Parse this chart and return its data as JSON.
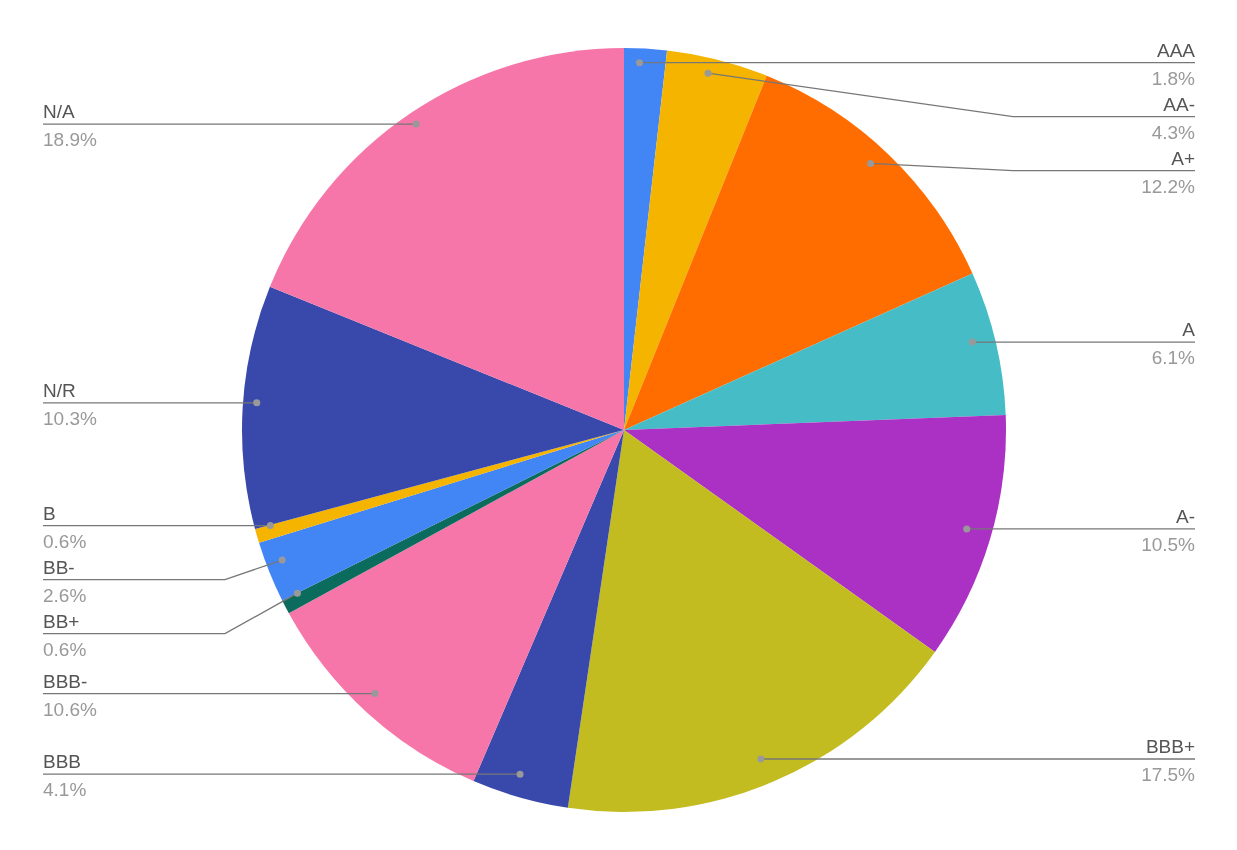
{
  "chart_data": {
    "type": "pie",
    "categories": [
      "AAA",
      "AA-",
      "A+",
      "A",
      "A-",
      "BBB+",
      "BBB",
      "BBB-",
      "BB+",
      "BB-",
      "B",
      "N/R",
      "N/A"
    ],
    "values": [
      1.8,
      4.3,
      12.2,
      6.1,
      10.5,
      17.5,
      4.1,
      10.6,
      0.6,
      2.6,
      0.6,
      10.3,
      18.9
    ],
    "value_labels": [
      "1.8%",
      "4.3%",
      "12.2%",
      "6.1%",
      "10.5%",
      "17.5%",
      "4.1%",
      "10.6%",
      "0.6%",
      "2.6%",
      "0.6%",
      "10.3%",
      "18.9%"
    ],
    "colors": [
      "#4285f4",
      "#f4b400",
      "#ff6d01",
      "#46bdc6",
      "#ab30c4",
      "#c2bc20",
      "#3949ab",
      "#f776a9",
      "#0b6b5c",
      "#4285f4",
      "#f4b400",
      "#3949ab",
      "#f776a9"
    ]
  }
}
